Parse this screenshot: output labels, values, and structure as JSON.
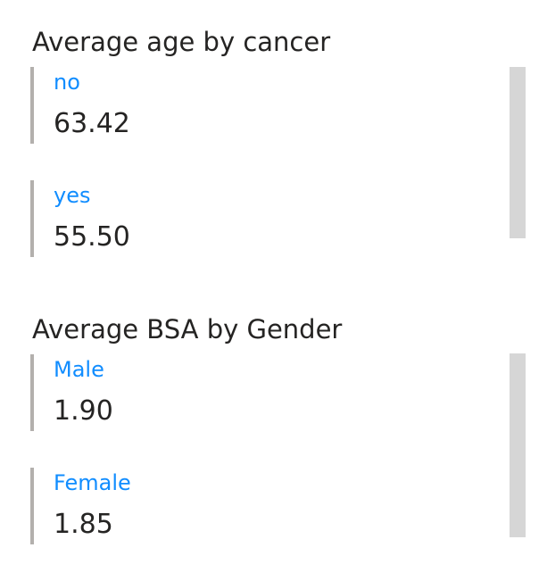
{
  "cards": [
    {
      "title": "Average age by cancer",
      "items": [
        {
          "label": "no",
          "value": "63.42"
        },
        {
          "label": "yes",
          "value": "55.50"
        }
      ]
    },
    {
      "title": "Average BSA by Gender",
      "items": [
        {
          "label": "Male",
          "value": "1.90"
        },
        {
          "label": "Female",
          "value": "1.85"
        }
      ]
    }
  ],
  "colors": {
    "label": "#118dff",
    "value": "#252423",
    "accent_bar": "#b3b0ad",
    "scrollbar": "#d6d6d6"
  }
}
